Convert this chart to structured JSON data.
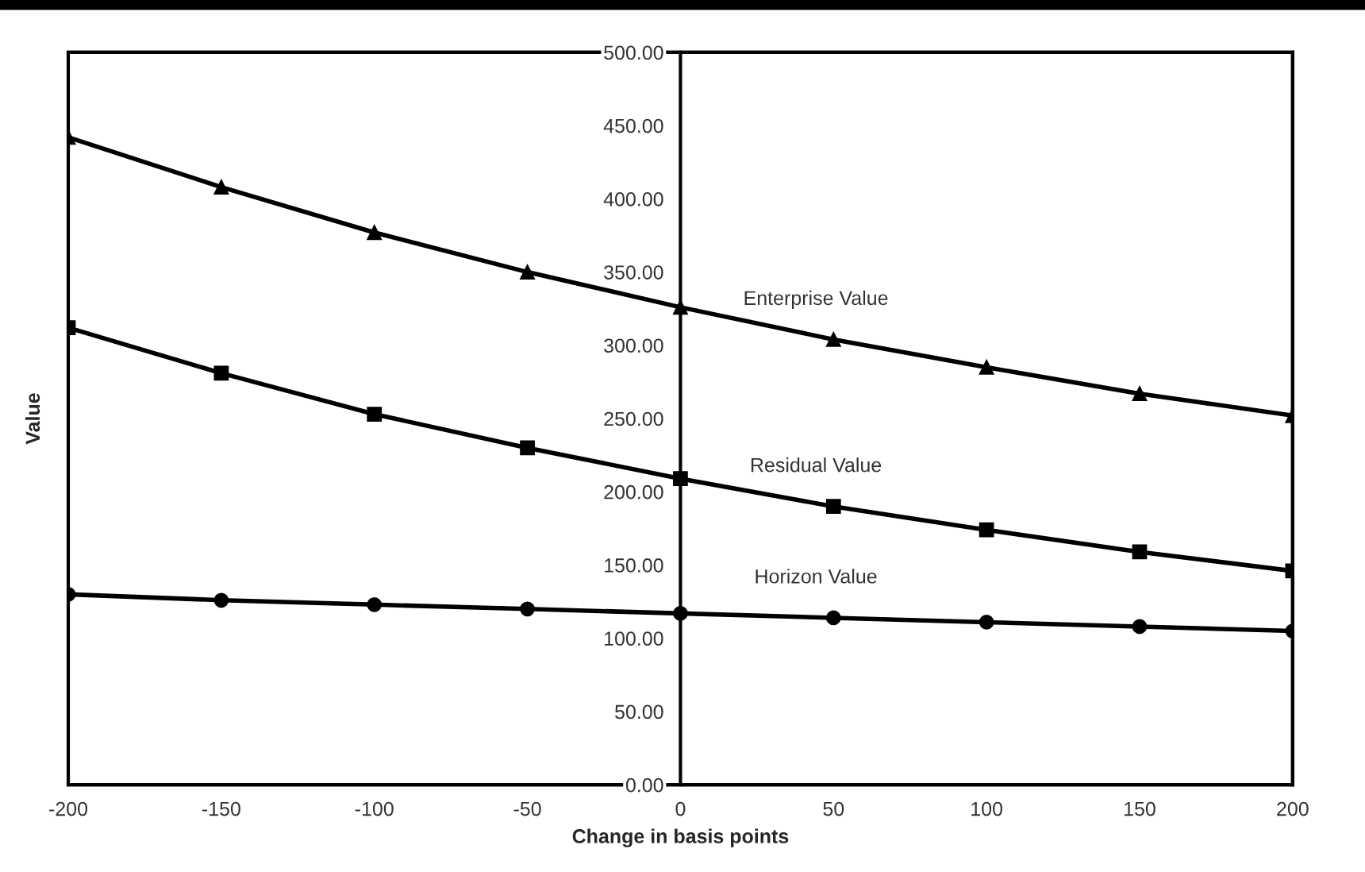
{
  "chart_data": {
    "type": "line",
    "xlabel": "Change in basis points",
    "ylabel": "Value",
    "x": [
      -200,
      -150,
      -100,
      -50,
      0,
      50,
      100,
      150,
      200
    ],
    "series": [
      {
        "name": "Enterprise Value",
        "color": "#000000",
        "marker": "triangle",
        "values": [
          442,
          408,
          377,
          350,
          326,
          304,
          285,
          267,
          252
        ]
      },
      {
        "name": "Residual Value",
        "color": "#000000",
        "marker": "square",
        "values": [
          312,
          281,
          253,
          230,
          209,
          190,
          174,
          159,
          146
        ]
      },
      {
        "name": "Horizon Value",
        "color": "#000000",
        "marker": "circle",
        "values": [
          130,
          126,
          123,
          120,
          117,
          114,
          111,
          108,
          105
        ]
      }
    ],
    "xlim": [
      -200,
      200
    ],
    "xticks": [
      -200,
      -150,
      -100,
      -50,
      0,
      50,
      100,
      150,
      200
    ],
    "ylim": [
      0,
      500
    ],
    "yticks": [
      {
        "value": 0,
        "label": "0.00"
      },
      {
        "value": 50,
        "label": "50.00"
      },
      {
        "value": 100,
        "label": "100.00"
      },
      {
        "value": 150,
        "label": "150.00"
      },
      {
        "value": 200,
        "label": "200.00"
      },
      {
        "value": 250,
        "label": "250.00"
      },
      {
        "value": 300,
        "label": "300.00"
      },
      {
        "value": 350,
        "label": "350.00"
      },
      {
        "value": 400,
        "label": "400.00"
      },
      {
        "value": 450,
        "label": "450.00"
      },
      {
        "value": 500,
        "label": "500.00"
      }
    ],
    "grid": false,
    "legend": false,
    "line_style": "solid"
  }
}
